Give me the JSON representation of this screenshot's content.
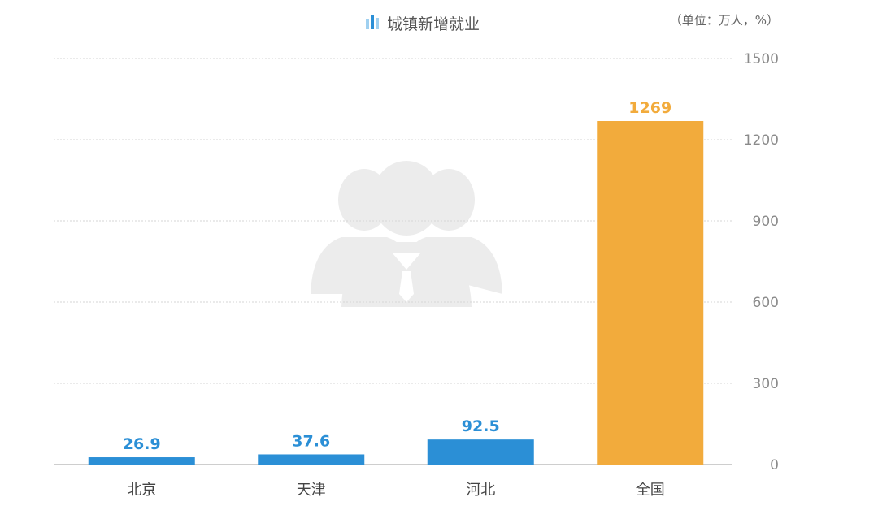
{
  "chart_data": {
    "type": "bar",
    "title": "城镇新增就业",
    "unit_note": "（单位：万人，%）",
    "categories": [
      "北京",
      "天津",
      "河北",
      "全国"
    ],
    "values": [
      26.9,
      37.6,
      92.5,
      1269
    ],
    "value_labels": [
      "26.9",
      "37.6",
      "92.5",
      "1269"
    ],
    "bar_colors": [
      "#2b8fd6",
      "#2b8fd6",
      "#2b8fd6",
      "#f2ab3c"
    ],
    "label_colors": [
      "#2b8fd6",
      "#2b8fd6",
      "#2b8fd6",
      "#f2ab3c"
    ],
    "ylim": [
      0,
      1500
    ],
    "yticks": [
      0,
      300,
      600,
      900,
      1200,
      1500
    ],
    "ytick_labels": [
      "0",
      "300",
      "600",
      "900",
      "1200",
      "1500"
    ],
    "y_axis_side": "right",
    "grid": true,
    "icon_color": "#2b8fd6",
    "icon_light_color": "#9fd0f0",
    "watermark": "people-silhouette-icon"
  }
}
